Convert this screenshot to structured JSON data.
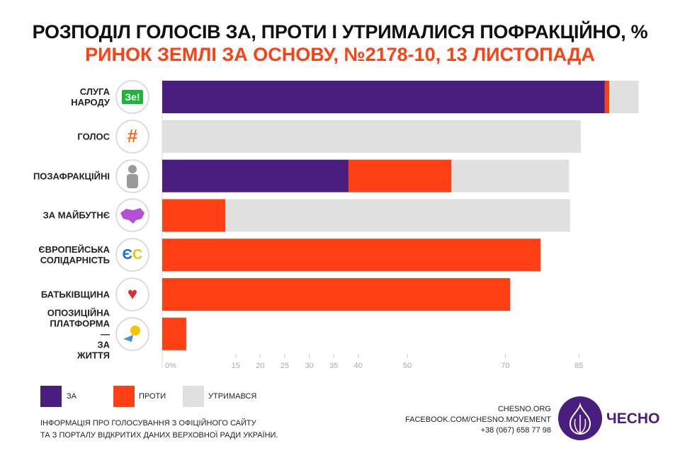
{
  "title": "РОЗПОДІЛ ГОЛОСІВ ЗА, ПРОТИ І УТРИМАЛИСЯ ПОФРАКЦІЙНО, %",
  "subtitle": "РИНОК ЗЕМЛІ ЗА ОСНОВУ, №2178-10, 13 ЛИСТОПАДА",
  "chart_data": {
    "type": "bar",
    "orientation": "horizontal",
    "stacked": true,
    "categories": [
      "СЛУГА НАРОДУ",
      "ГОЛОС",
      "ПОЗАФРАКЦІЙНІ",
      "ЗА МАЙБУТНЄ",
      "ЄВРОПЕЙСЬКА СОЛІДАРНІСТЬ",
      "БАТЬКІВЩИНА",
      "ОПОЗИЦІЙНА ПЛАТФОРМА — ЗА ЖИТТЯ"
    ],
    "series": [
      {
        "name": "ЗА",
        "color": "#4a1e7e",
        "values": [
          90.3,
          0,
          38,
          0,
          0,
          0,
          0
        ]
      },
      {
        "name": "ПРОТИ",
        "color": "#ff4015",
        "values": [
          0.9,
          0,
          21,
          12.9,
          77.2,
          71,
          4.9
        ]
      },
      {
        "name": "УТРИМАВСЯ",
        "color": "#e0e0e0",
        "values": [
          6,
          85.4,
          24,
          70.3,
          0,
          0,
          0
        ]
      }
    ],
    "xticks": [
      0,
      15,
      20,
      25,
      30,
      35,
      40,
      50,
      70,
      85
    ],
    "xtick_labels": [
      "0%",
      "15",
      "20",
      "25",
      "30",
      "35",
      "40",
      "50",
      "70",
      "85"
    ],
    "xlim": [
      0,
      100
    ],
    "grid": false,
    "legend_position": "bottom-left"
  },
  "party_icons": [
    "Зе!",
    "#",
    "person",
    "map",
    "ЄС",
    "heart",
    "sunflower"
  ],
  "note": [
    "ІНФОРМАЦІЯ ПРО ГОЛОСУВАННЯ З ОФІЦІЙНОГО САЙТУ",
    "ТА З ПОРТАЛУ ВІДКРИТИХ ДАНИХ ВЕРХОВНОЇ РАДИ УКРАЇНИ."
  ],
  "contact": [
    "CHESNO.ORG",
    "FACEBOOK.COM/CHESNO.MOVEMENT",
    "+38 (067) 658 77 98"
  ],
  "logo": "ЧЕСНО"
}
